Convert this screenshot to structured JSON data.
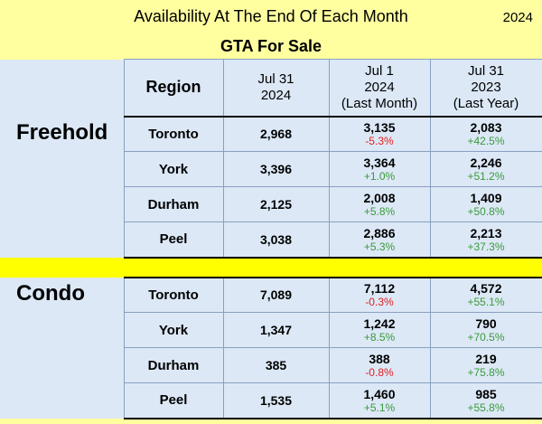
{
  "header": {
    "title": "Availability At The End Of Each Month",
    "year": "2024",
    "subtitle": "GTA For Sale"
  },
  "columns": {
    "region": "Region",
    "c1": [
      "Jul 31",
      "2024"
    ],
    "c2": [
      "Jul 1",
      "2024",
      "(Last Month)"
    ],
    "c3": [
      "Jul 31",
      "2023",
      "(Last Year)"
    ]
  },
  "freehold": {
    "label": "Freehold",
    "rows": [
      {
        "region": "Toronto",
        "cur": "2,968",
        "lm": "3,135",
        "lm_pct": "-5.3%",
        "ly": "2,083",
        "ly_pct": "+42.5%"
      },
      {
        "region": "York",
        "cur": "3,396",
        "lm": "3,364",
        "lm_pct": "+1.0%",
        "ly": "2,246",
        "ly_pct": "+51.2%"
      },
      {
        "region": "Durham",
        "cur": "2,125",
        "lm": "2,008",
        "lm_pct": "+5.8%",
        "ly": "1,409",
        "ly_pct": "+50.8%"
      },
      {
        "region": "Peel",
        "cur": "3,038",
        "lm": "2,886",
        "lm_pct": "+5.3%",
        "ly": "2,213",
        "ly_pct": "+37.3%"
      }
    ]
  },
  "condo": {
    "label": "Condo",
    "rows": [
      {
        "region": "Toronto",
        "cur": "7,089",
        "lm": "7,112",
        "lm_pct": "-0.3%",
        "ly": "4,572",
        "ly_pct": "+55.1%"
      },
      {
        "region": "York",
        "cur": "1,347",
        "lm": "1,242",
        "lm_pct": "+8.5%",
        "ly": "790",
        "ly_pct": "+70.5%"
      },
      {
        "region": "Durham",
        "cur": "385",
        "lm": "388",
        "lm_pct": "-0.8%",
        "ly": "219",
        "ly_pct": "+75.8%"
      },
      {
        "region": "Peel",
        "cur": "1,535",
        "lm": "1,460",
        "lm_pct": "+5.1%",
        "ly": "985",
        "ly_pct": "+55.8%"
      }
    ]
  },
  "colors": {
    "negative": "#e02020",
    "positive": "#3a9a3a",
    "background": "#ffffa0",
    "cell": "#dce8f6",
    "separator": "#ffff00"
  }
}
